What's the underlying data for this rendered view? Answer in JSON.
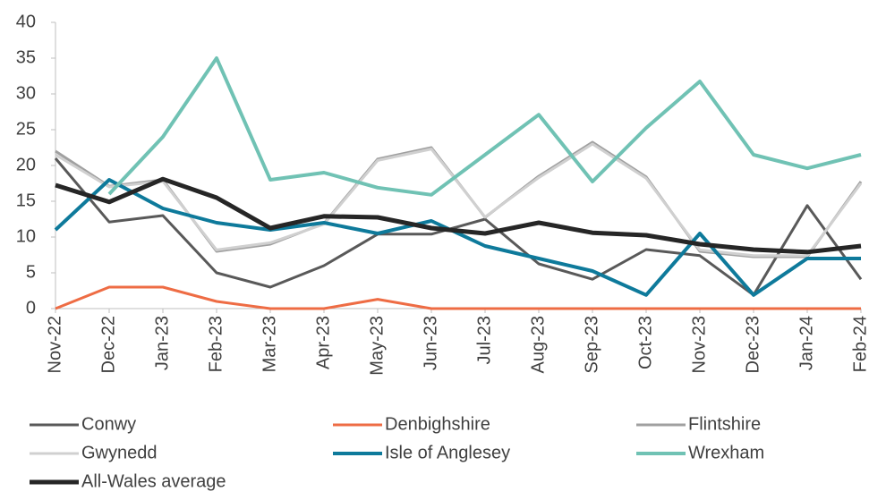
{
  "chart_data": {
    "type": "line",
    "categories": [
      "Nov-22",
      "Dec-22",
      "Jan-23",
      "Feb-23",
      "Mar-23",
      "Apr-23",
      "May-23",
      "Jun-23",
      "Jul-23",
      "Aug-23",
      "Sep-23",
      "Oct-23",
      "Nov-23",
      "Dec-23",
      "Jan-24",
      "Feb-24"
    ],
    "ylim": [
      0,
      40
    ],
    "yticks": [
      0,
      5,
      10,
      15,
      20,
      25,
      30,
      35,
      40
    ],
    "grid": false,
    "series": [
      {
        "name": "Conwy",
        "color": "#595959",
        "width": 3,
        "values": [
          21,
          12.1,
          13,
          5,
          3,
          6,
          10.4,
          10.4,
          12.5,
          6.25,
          4.1,
          8.25,
          7.4,
          1.9,
          14.4,
          4.1
        ]
      },
      {
        "name": "Denbighshire",
        "color": "#ee6c44",
        "width": 3,
        "values": [
          0,
          3,
          3,
          1,
          0,
          0,
          1.3,
          0,
          0,
          0,
          0,
          0,
          0,
          0,
          0,
          0
        ]
      },
      {
        "name": "Flintshire",
        "color": "#a0a0a0",
        "width": 3,
        "values": [
          22,
          17.1,
          18,
          8,
          9,
          11.9,
          20.9,
          22.5,
          12.75,
          18.5,
          23.25,
          18.4,
          8,
          7.25,
          7.25,
          17.75
        ]
      },
      {
        "name": "Gwynedd",
        "color": "#d0d0d0",
        "width": 3,
        "values": [
          21.5,
          17,
          17.8,
          8.2,
          9.2,
          11.8,
          20.7,
          22.3,
          12.8,
          18.3,
          23,
          18.2,
          8.2,
          7.4,
          7.4,
          17.5
        ]
      },
      {
        "name": "Isle of Anglesey",
        "color": "#0e7a9b",
        "width": 4,
        "values": [
          11,
          18,
          14,
          12,
          11,
          12,
          10.5,
          12.25,
          8.75,
          7,
          5.25,
          1.9,
          10.5,
          1.9,
          7,
          7
        ]
      },
      {
        "name": "Wrexham",
        "color": "#70c2b4",
        "width": 4,
        "values": [
          null,
          16,
          24,
          35,
          18,
          19,
          16.9,
          15.9,
          21.5,
          27.1,
          17.75,
          25.25,
          31.75,
          21.5,
          19.6,
          21.5
        ]
      },
      {
        "name": "All-Wales average",
        "color": "#262626",
        "width": 5,
        "values": [
          17.25,
          14.9,
          18.1,
          15.5,
          11.25,
          12.9,
          12.75,
          11.25,
          10.5,
          12,
          10.6,
          10.25,
          9,
          8.25,
          7.9,
          8.75
        ]
      }
    ]
  }
}
